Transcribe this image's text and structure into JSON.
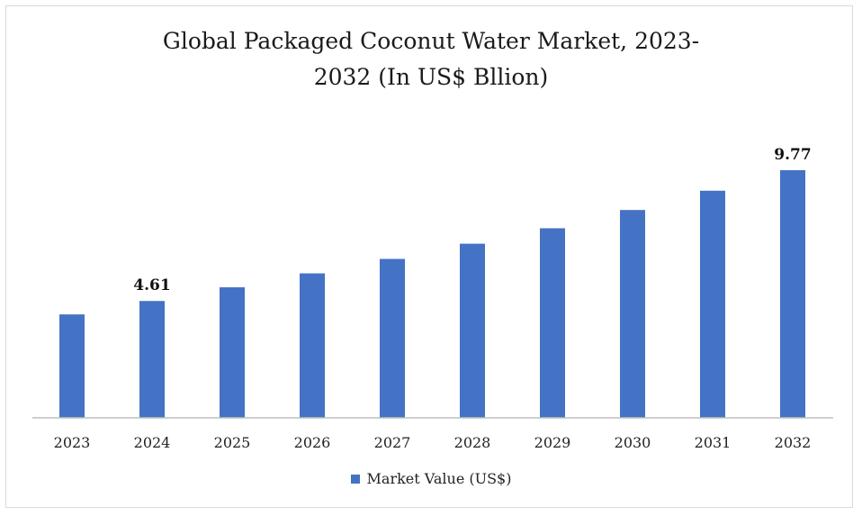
{
  "chart_data": {
    "type": "bar",
    "title": "Global Packaged Coconut Water Market, 2023-2032 (In US$ Bllion)",
    "title_lines": [
      "Global Packaged Coconut Water Market, 2023-",
      "2032 (In US$ Bllion)"
    ],
    "categories": [
      "2023",
      "2024",
      "2025",
      "2026",
      "2027",
      "2028",
      "2029",
      "2030",
      "2031",
      "2032"
    ],
    "series": [
      {
        "name": "Market Value (US$)",
        "values": [
          4.08,
          4.61,
          5.15,
          5.7,
          6.27,
          6.87,
          7.48,
          8.2,
          8.96,
          9.77
        ],
        "data_labels": {
          "1": "4.61",
          "9": "9.77"
        }
      }
    ],
    "ylim": [
      0,
      10.5
    ],
    "grid": false,
    "legend_position": "bottom",
    "colors": {
      "bar": "#4472c4",
      "axis": "#bfbfbf"
    }
  }
}
